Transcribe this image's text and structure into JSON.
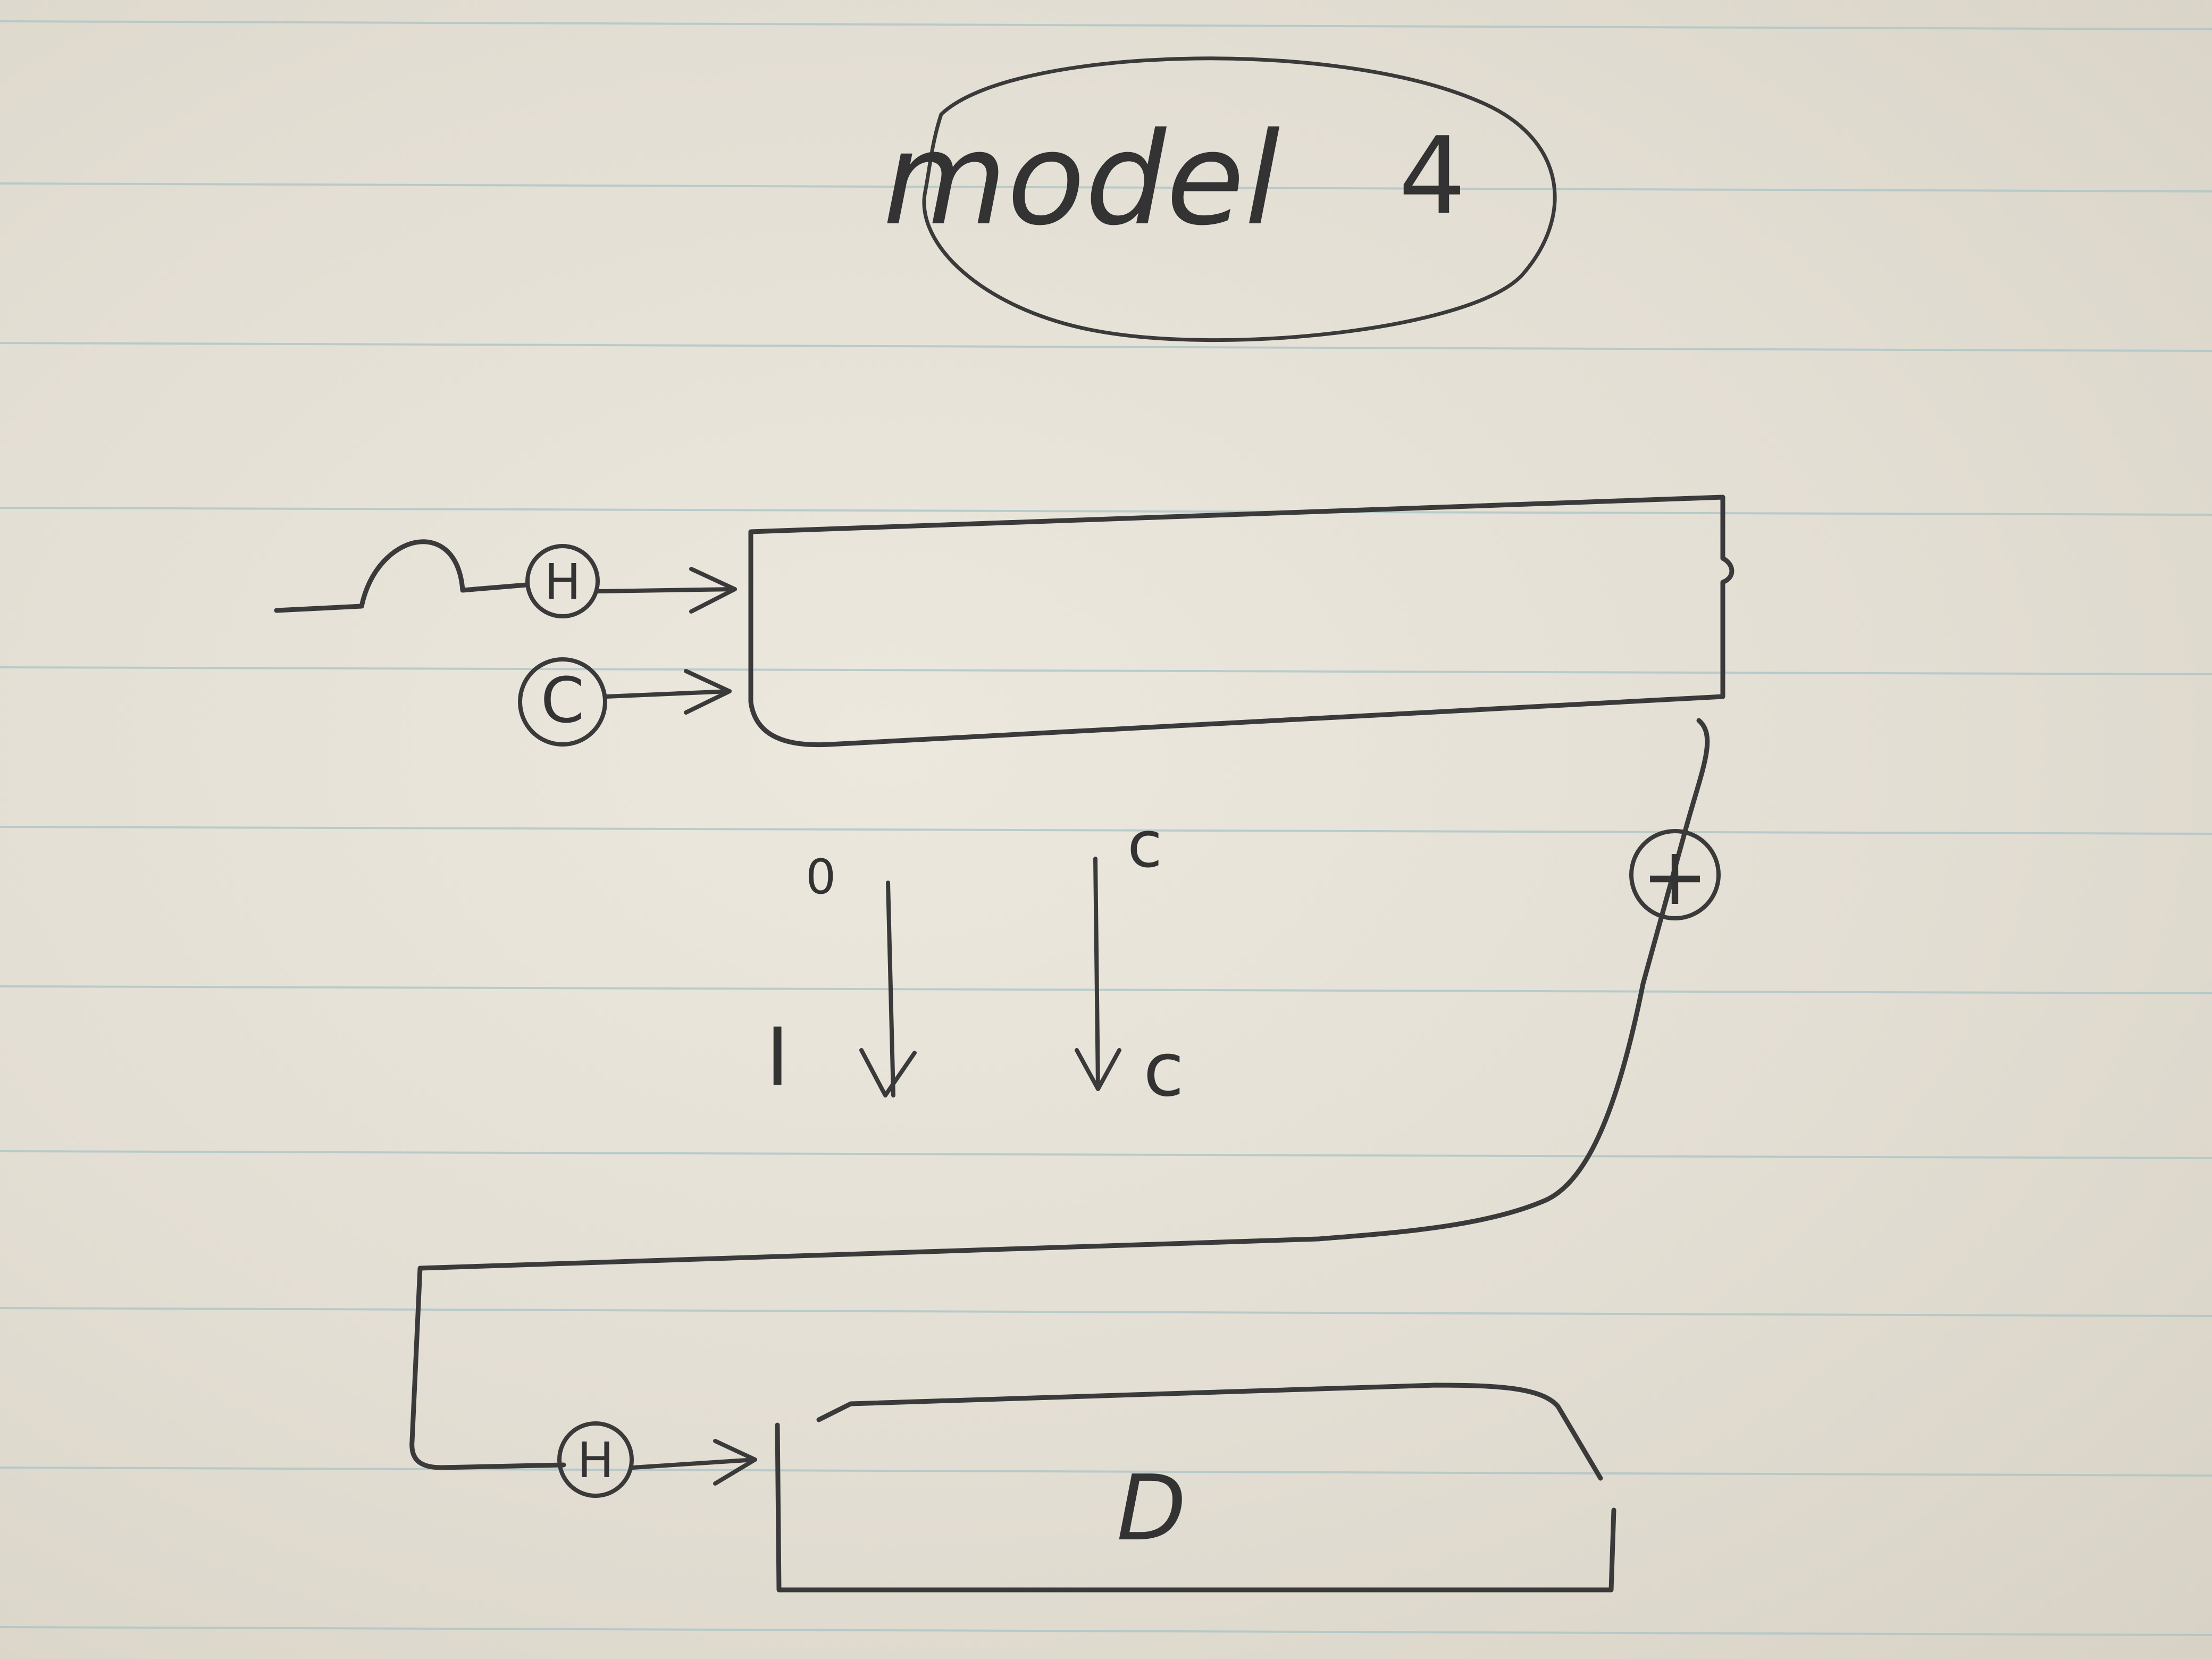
{
  "diagram": {
    "title": "model",
    "title_number": "4",
    "top_block": {
      "inputs": [
        "H",
        "C"
      ],
      "output_node": "+"
    },
    "mappings": [
      {
        "from": "0",
        "to": "I"
      },
      {
        "from": "c",
        "to": "c"
      }
    ],
    "bottom_block": {
      "input": "H",
      "label": "D"
    }
  },
  "colors": {
    "paper": "#e6e1d6",
    "rule_lines": "#a9c4c6",
    "ink": "#3a3a3a"
  }
}
